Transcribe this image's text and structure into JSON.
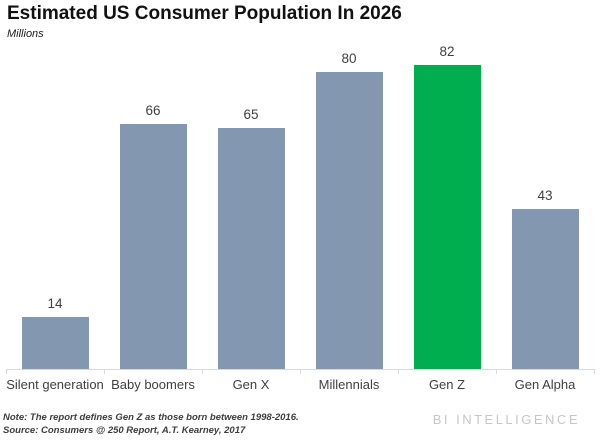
{
  "header": {
    "title": "Estimated US Consumer Population In 2026",
    "subtitle": "Millions"
  },
  "footer": {
    "note_line1": "Note: The report defines Gen Z as those born between 1998-2016.",
    "note_line2": "Source: Consumers @ 250 Report, A.T. Kearney, 2017",
    "logo": "BI INTELLIGENCE"
  },
  "colors": {
    "bar_default": "#8497B0",
    "bar_highlight": "#00AE50",
    "axis": "#d9d9d9",
    "label_text": "#404040"
  },
  "chart_data": {
    "type": "bar",
    "title": "Estimated US Consumer Population In 2026",
    "ylabel": "Millions",
    "categories": [
      "Silent generation",
      "Baby boomers",
      "Gen X",
      "Millennials",
      "Gen Z",
      "Gen Alpha"
    ],
    "values": [
      14,
      66,
      65,
      80,
      82,
      43
    ],
    "highlight_index": 4,
    "highlight_category": "Gen Z",
    "data_labels": true,
    "grid": false,
    "legend": false,
    "y_axis_visible": false,
    "ylim": [
      0,
      86
    ]
  }
}
